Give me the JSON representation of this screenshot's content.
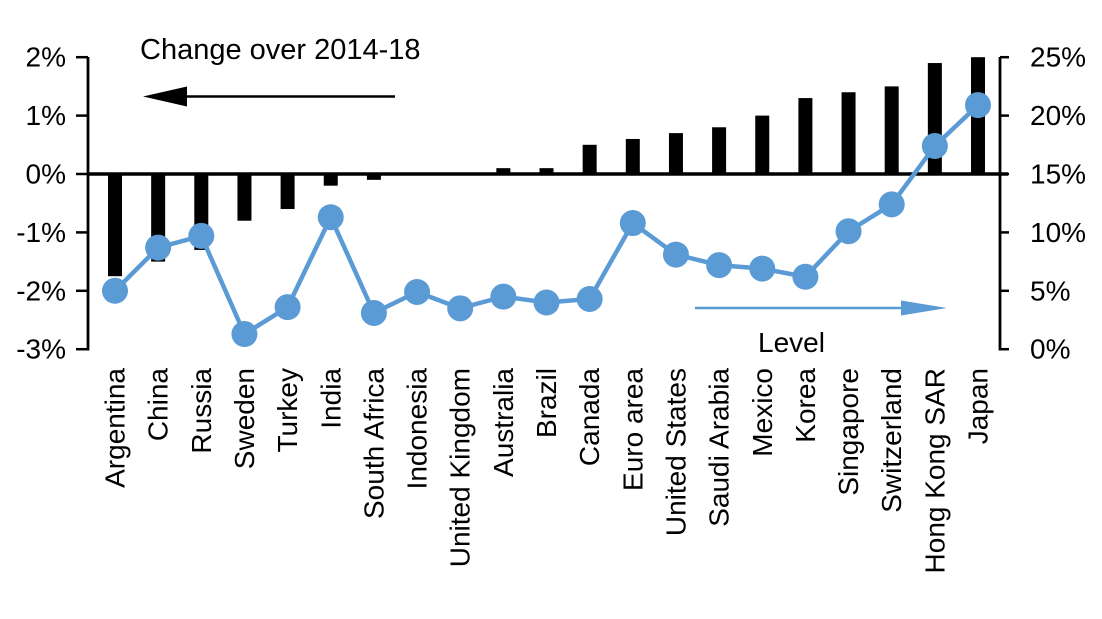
{
  "chart_data": {
    "type": "bar",
    "subtype": "combo-bar-line-dual-axis",
    "title": "",
    "background": "#FFFFFF",
    "grid": false,
    "categories": [
      "Argentina",
      "China",
      "Russia",
      "Sweden",
      "Turkey",
      "India",
      "South Africa",
      "Indonesia",
      "United Kingdom",
      "Australia",
      "Brazil",
      "Canada",
      "Euro area",
      "United States",
      "Saudi Arabia",
      "Mexico",
      "Korea",
      "Singapore",
      "Switzerland",
      "Hong Kong SAR",
      "Japan"
    ],
    "series": [
      {
        "name": "Change over 2014-18",
        "type": "bar",
        "axis": "left",
        "color": "#000000",
        "values": [
          -1.75,
          -1.5,
          -1.3,
          -0.8,
          -0.6,
          -0.2,
          -0.1,
          0.0,
          0.0,
          0.1,
          0.1,
          0.5,
          0.6,
          0.7,
          0.8,
          1.0,
          1.3,
          1.4,
          1.5,
          1.9,
          2.0
        ]
      },
      {
        "name": "Level",
        "type": "line",
        "axis": "right",
        "color": "#5B9BD5",
        "values": [
          5.0,
          8.7,
          9.7,
          1.3,
          3.6,
          11.3,
          3.1,
          4.9,
          3.5,
          4.5,
          4.0,
          4.3,
          10.8,
          8.1,
          7.2,
          6.9,
          6.2,
          10.1,
          12.4,
          17.4,
          20.9
        ]
      }
    ],
    "left_axis": {
      "tick_labels": [
        "2%",
        "1%",
        "0%",
        "-1%",
        "-2%",
        "-3%"
      ],
      "tick_values": [
        2,
        1,
        0,
        -1,
        -2,
        -3
      ],
      "range": [
        -3,
        2
      ]
    },
    "right_axis": {
      "tick_labels": [
        "25%",
        "20%",
        "15%",
        "10%",
        "5%",
        "0%"
      ],
      "tick_values": [
        25,
        20,
        15,
        10,
        5,
        0
      ],
      "range": [
        0,
        25
      ]
    },
    "annotations": [
      {
        "text": "Change over 2014-18",
        "arrow": "left",
        "color": "#000000"
      },
      {
        "text": "Level",
        "arrow": "right",
        "color": "#5B9BD5"
      }
    ]
  }
}
